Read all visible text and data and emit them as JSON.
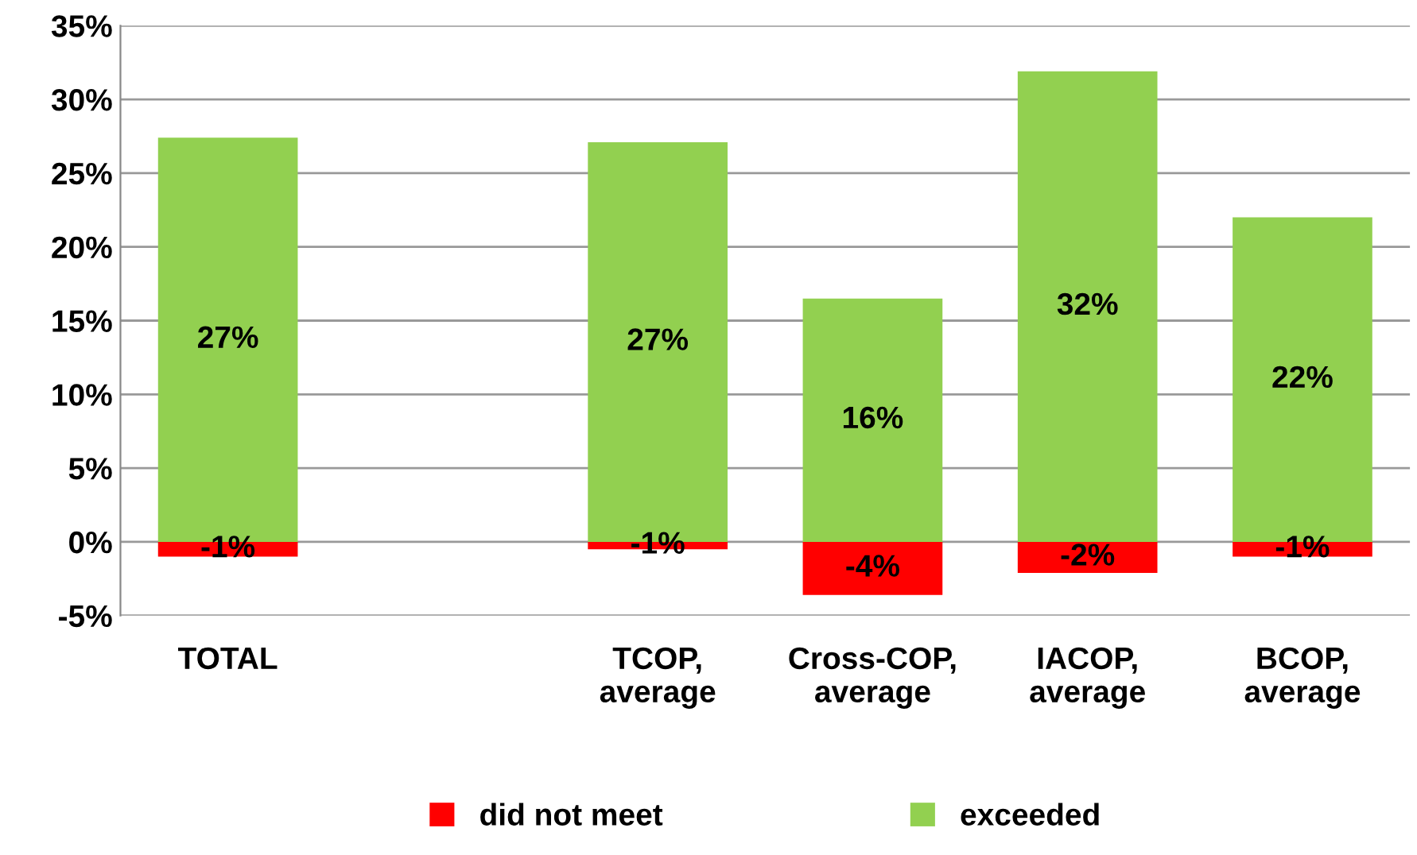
{
  "chart_data": {
    "type": "bar",
    "stacked": true,
    "categories": [
      "TOTAL",
      null,
      "TCOP,\naverage",
      "Cross-COP,\naverage",
      "IACOP,\naverage",
      "BCOP,\naverage"
    ],
    "series": [
      {
        "name": "did not meet",
        "color": "#ff0000",
        "values": [
          -1.0,
          null,
          -0.5,
          -3.6,
          -2.1,
          -1.0
        ],
        "value_labels": [
          "-1%",
          null,
          "-1%",
          "-4%",
          "-2%",
          "-1%"
        ]
      },
      {
        "name": "exceeded",
        "color": "#92d050",
        "values": [
          27.4,
          null,
          27.1,
          16.5,
          31.9,
          22.0
        ],
        "value_labels": [
          "27%",
          null,
          "27%",
          "16%",
          "32%",
          "22%"
        ]
      }
    ],
    "ylim": [
      -5,
      35
    ],
    "yticks": [
      {
        "value": -5,
        "label": "-5%"
      },
      {
        "value": 0,
        "label": "0%"
      },
      {
        "value": 5,
        "label": "5%"
      },
      {
        "value": 10,
        "label": "10%"
      },
      {
        "value": 15,
        "label": "15%"
      },
      {
        "value": 20,
        "label": "20%"
      },
      {
        "value": 25,
        "label": "25%"
      },
      {
        "value": 30,
        "label": "30%"
      },
      {
        "value": 35,
        "label": "35%"
      }
    ],
    "grid": "y",
    "legend": "bottom"
  }
}
